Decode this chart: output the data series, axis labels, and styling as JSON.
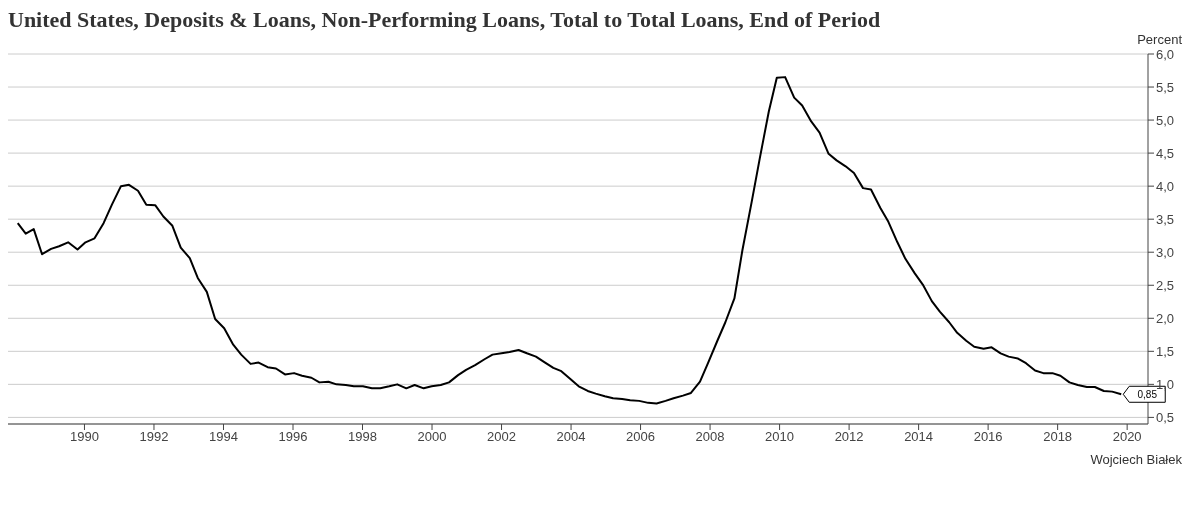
{
  "chart_data": {
    "type": "line",
    "title": "United States, Deposits & Loans, Non-Performing Loans, Total to Total Loans, End of Period",
    "ylabel": "Percent",
    "x": [
      1988.08,
      1988.31,
      1988.54,
      1988.78,
      1989.04,
      1989.27,
      1989.53,
      1989.8,
      1990.03,
      1990.29,
      1990.55,
      1990.79,
      1991.05,
      1991.28,
      1991.54,
      1991.78,
      1992.04,
      1992.27,
      1992.53,
      1992.77,
      1993.03,
      1993.26,
      1993.52,
      1993.76,
      1994.02,
      1994.28,
      1994.51,
      1994.78,
      1995.01,
      1995.27,
      1995.51,
      1995.77,
      1996.03,
      1996.26,
      1996.53,
      1996.76,
      1997.02,
      1997.25,
      1997.52,
      1997.75,
      1998.01,
      1998.27,
      1998.51,
      1998.77,
      1999.0,
      1999.26,
      1999.5,
      1999.76,
      1999.99,
      2000.25,
      2000.49,
      2000.75,
      2000.98,
      2001.24,
      2001.51,
      2001.74,
      2002.0,
      2002.23,
      2002.49,
      2002.73,
      2002.99,
      2003.22,
      2003.49,
      2003.72,
      2003.98,
      2004.22,
      2004.48,
      2004.71,
      2004.97,
      2005.21,
      2005.47,
      2005.7,
      2005.96,
      2006.22,
      2006.46,
      2006.72,
      2006.95,
      2007.22,
      2007.45,
      2007.71,
      2007.94,
      2008.21,
      2008.44,
      2008.7,
      2008.93,
      2009.2,
      2009.43,
      2009.69,
      2009.92,
      2010.16,
      2010.42,
      2010.65,
      2010.91,
      2011.15,
      2011.41,
      2011.64,
      2011.9,
      2012.14,
      2012.4,
      2012.63,
      2012.9,
      2013.13,
      2013.39,
      2013.62,
      2013.89,
      2014.12,
      2014.38,
      2014.61,
      2014.88,
      2015.11,
      2015.37,
      2015.6,
      2015.87,
      2016.1,
      2016.36,
      2016.59,
      2016.86,
      2017.09,
      2017.35,
      2017.59,
      2017.85,
      2018.08,
      2018.34,
      2018.58,
      2018.84,
      2019.07,
      2019.33,
      2019.57,
      2019.83
    ],
    "series": [
      {
        "color": "#000000",
        "values": [
          3.44,
          3.28,
          3.35,
          2.97,
          3.05,
          3.09,
          3.15,
          3.04,
          3.15,
          3.21,
          3.44,
          3.72,
          4.0,
          4.02,
          3.93,
          3.72,
          3.71,
          3.54,
          3.4,
          3.07,
          2.91,
          2.61,
          2.4,
          1.99,
          1.85,
          1.6,
          1.45,
          1.31,
          1.33,
          1.26,
          1.24,
          1.15,
          1.17,
          1.13,
          1.1,
          1.03,
          1.04,
          1.0,
          0.99,
          0.97,
          0.97,
          0.94,
          0.94,
          0.97,
          1.0,
          0.94,
          0.99,
          0.94,
          0.97,
          0.99,
          1.03,
          1.14,
          1.22,
          1.29,
          1.38,
          1.45,
          1.47,
          1.49,
          1.52,
          1.47,
          1.42,
          1.34,
          1.25,
          1.2,
          1.08,
          0.97,
          0.9,
          0.86,
          0.82,
          0.79,
          0.78,
          0.76,
          0.75,
          0.72,
          0.71,
          0.75,
          0.79,
          0.83,
          0.87,
          1.04,
          1.32,
          1.66,
          1.94,
          2.3,
          3.03,
          3.77,
          4.42,
          5.13,
          5.64,
          5.65,
          5.34,
          5.22,
          4.98,
          4.81,
          4.49,
          4.39,
          4.3,
          4.2,
          3.97,
          3.95,
          3.67,
          3.46,
          3.15,
          2.9,
          2.68,
          2.51,
          2.26,
          2.1,
          1.94,
          1.78,
          1.66,
          1.57,
          1.54,
          1.56,
          1.47,
          1.42,
          1.39,
          1.32,
          1.21,
          1.17,
          1.17,
          1.13,
          1.03,
          0.99,
          0.96,
          0.96,
          0.9,
          0.89,
          0.85
        ]
      }
    ],
    "xlim": [
      1987.8,
      2020.6
    ],
    "xticks": [
      1990,
      1992,
      1994,
      1996,
      1998,
      2000,
      2002,
      2004,
      2006,
      2008,
      2010,
      2012,
      2014,
      2016,
      2018,
      2020
    ],
    "ylim": [
      0.4,
      6.0
    ],
    "yticks": [
      {
        "value": 0.5,
        "label": "0,5"
      },
      {
        "value": 1.0,
        "label": "1,0"
      },
      {
        "value": 1.5,
        "label": "1,5"
      },
      {
        "value": 2.0,
        "label": "2,0"
      },
      {
        "value": 2.5,
        "label": "2,5"
      },
      {
        "value": 3.0,
        "label": "3,0"
      },
      {
        "value": 3.5,
        "label": "3,5"
      },
      {
        "value": 4.0,
        "label": "4,0"
      },
      {
        "value": 4.5,
        "label": "4,5"
      },
      {
        "value": 5.0,
        "label": "5,0"
      },
      {
        "value": 5.5,
        "label": "5,5"
      },
      {
        "value": 6.0,
        "label": "6,0"
      }
    ],
    "grid": "y",
    "marker": "none",
    "line_style": "solid",
    "annotations": [
      {
        "text": "0,85",
        "x": 2019.83,
        "y": 0.85
      },
      "Wojciech Białek"
    ]
  }
}
